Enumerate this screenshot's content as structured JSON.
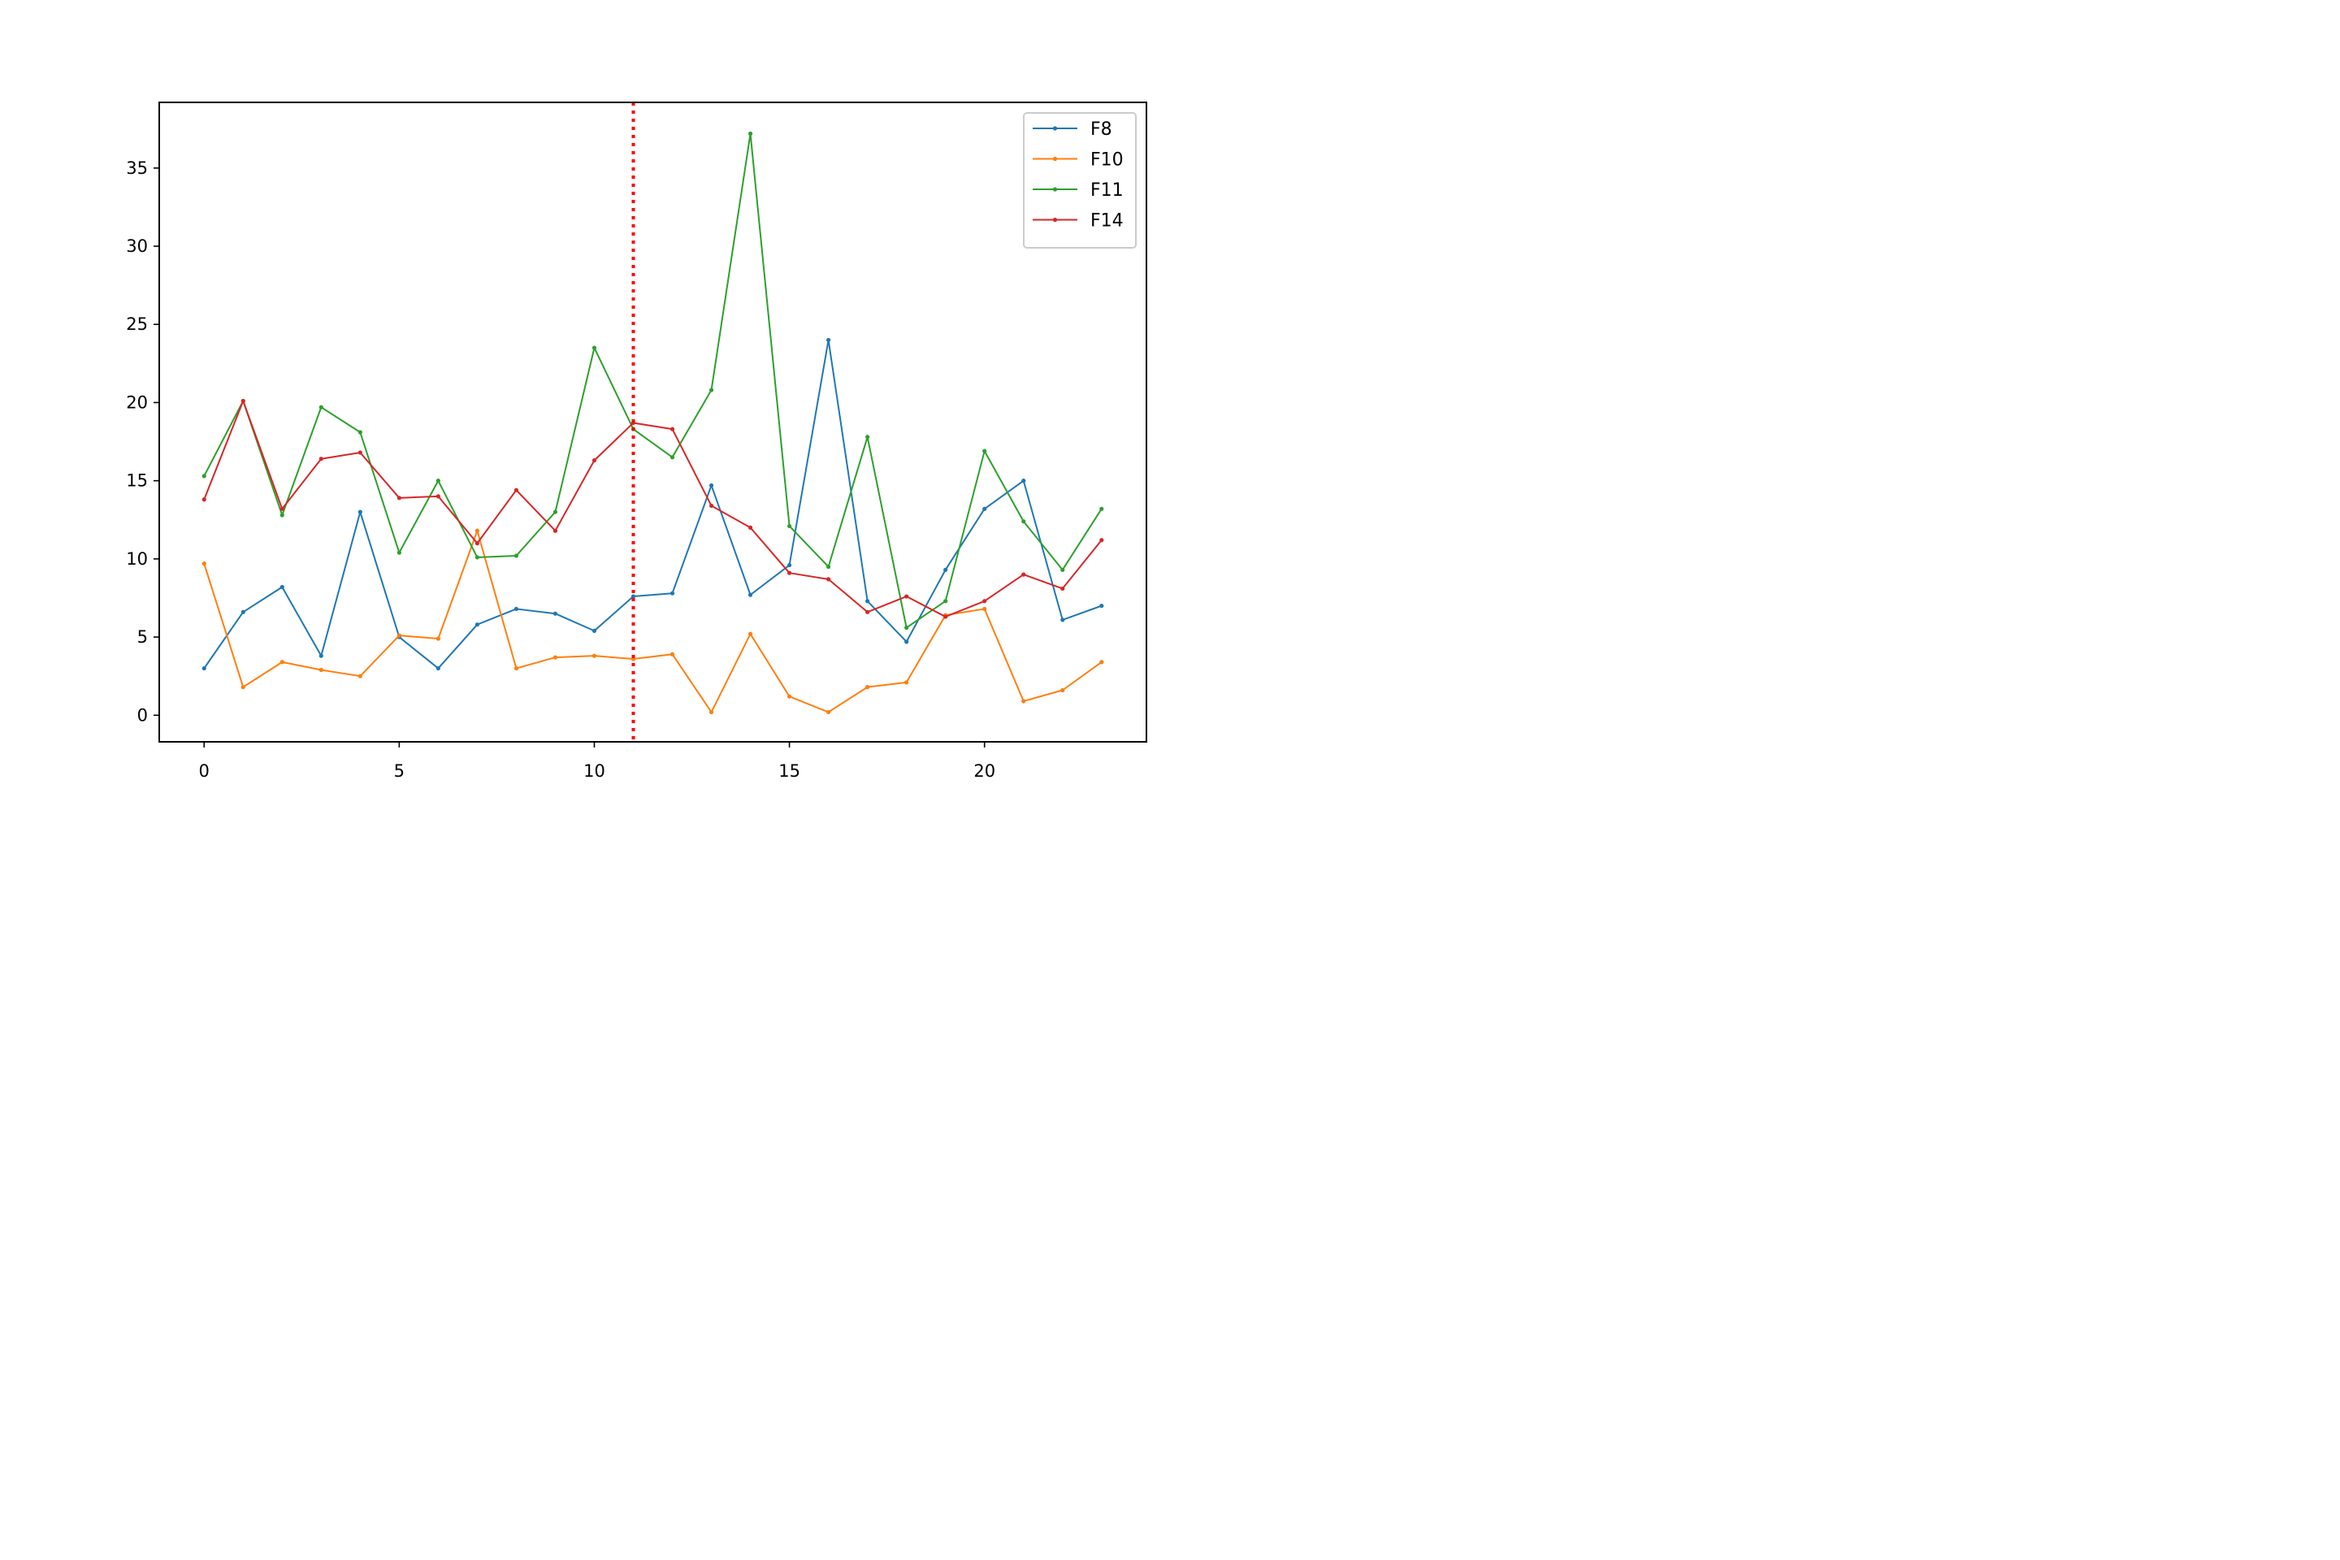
{
  "chart_data": {
    "type": "line",
    "title": "",
    "xlabel": "",
    "ylabel": "",
    "xlim": [
      -1.15,
      24.15
    ],
    "ylim": [
      -1.7,
      39.2
    ],
    "xticks": [
      0,
      5,
      10,
      15,
      20
    ],
    "yticks": [
      0,
      5,
      10,
      15,
      20,
      25,
      30,
      35
    ],
    "x": [
      0,
      1,
      2,
      3,
      4,
      5,
      6,
      7,
      8,
      9,
      10,
      11,
      12,
      13,
      14,
      15,
      16,
      17,
      18,
      19,
      20,
      21,
      22,
      23
    ],
    "vline": {
      "x": 11,
      "color": "#ff0000",
      "style": "dotted"
    },
    "grid": false,
    "legend_position": "top-right",
    "series": [
      {
        "name": "F8",
        "color": "#1f77b4",
        "values": [
          3.0,
          6.6,
          8.2,
          3.8,
          13.0,
          5.0,
          3.0,
          5.8,
          6.8,
          6.5,
          5.4,
          7.6,
          7.8,
          14.7,
          7.7,
          9.6,
          24.0,
          7.3,
          4.7,
          9.3,
          13.2,
          15.0,
          6.1,
          7.0
        ]
      },
      {
        "name": "F10",
        "color": "#ff7f0e",
        "values": [
          9.7,
          1.8,
          3.4,
          2.9,
          2.5,
          5.1,
          4.9,
          11.8,
          3.0,
          3.7,
          3.8,
          3.6,
          3.9,
          0.2,
          5.2,
          1.2,
          0.2,
          1.8,
          2.1,
          6.4,
          6.8,
          0.9,
          1.6,
          3.4
        ]
      },
      {
        "name": "F11",
        "color": "#2ca02c",
        "values": [
          15.3,
          20.1,
          12.8,
          19.7,
          18.1,
          10.4,
          15.0,
          10.1,
          10.2,
          13.0,
          23.5,
          18.3,
          16.5,
          20.8,
          37.2,
          12.1,
          9.5,
          17.8,
          5.6,
          7.3,
          16.9,
          12.4,
          9.3,
          13.2
        ]
      },
      {
        "name": "F14",
        "color": "#d62728",
        "values": [
          13.8,
          20.1,
          13.2,
          16.4,
          16.8,
          13.9,
          14.0,
          11.0,
          14.4,
          11.8,
          16.3,
          18.7,
          18.3,
          13.4,
          12.0,
          9.1,
          8.7,
          6.6,
          7.6,
          6.3,
          7.3,
          9.0,
          8.1,
          11.2
        ]
      }
    ]
  }
}
